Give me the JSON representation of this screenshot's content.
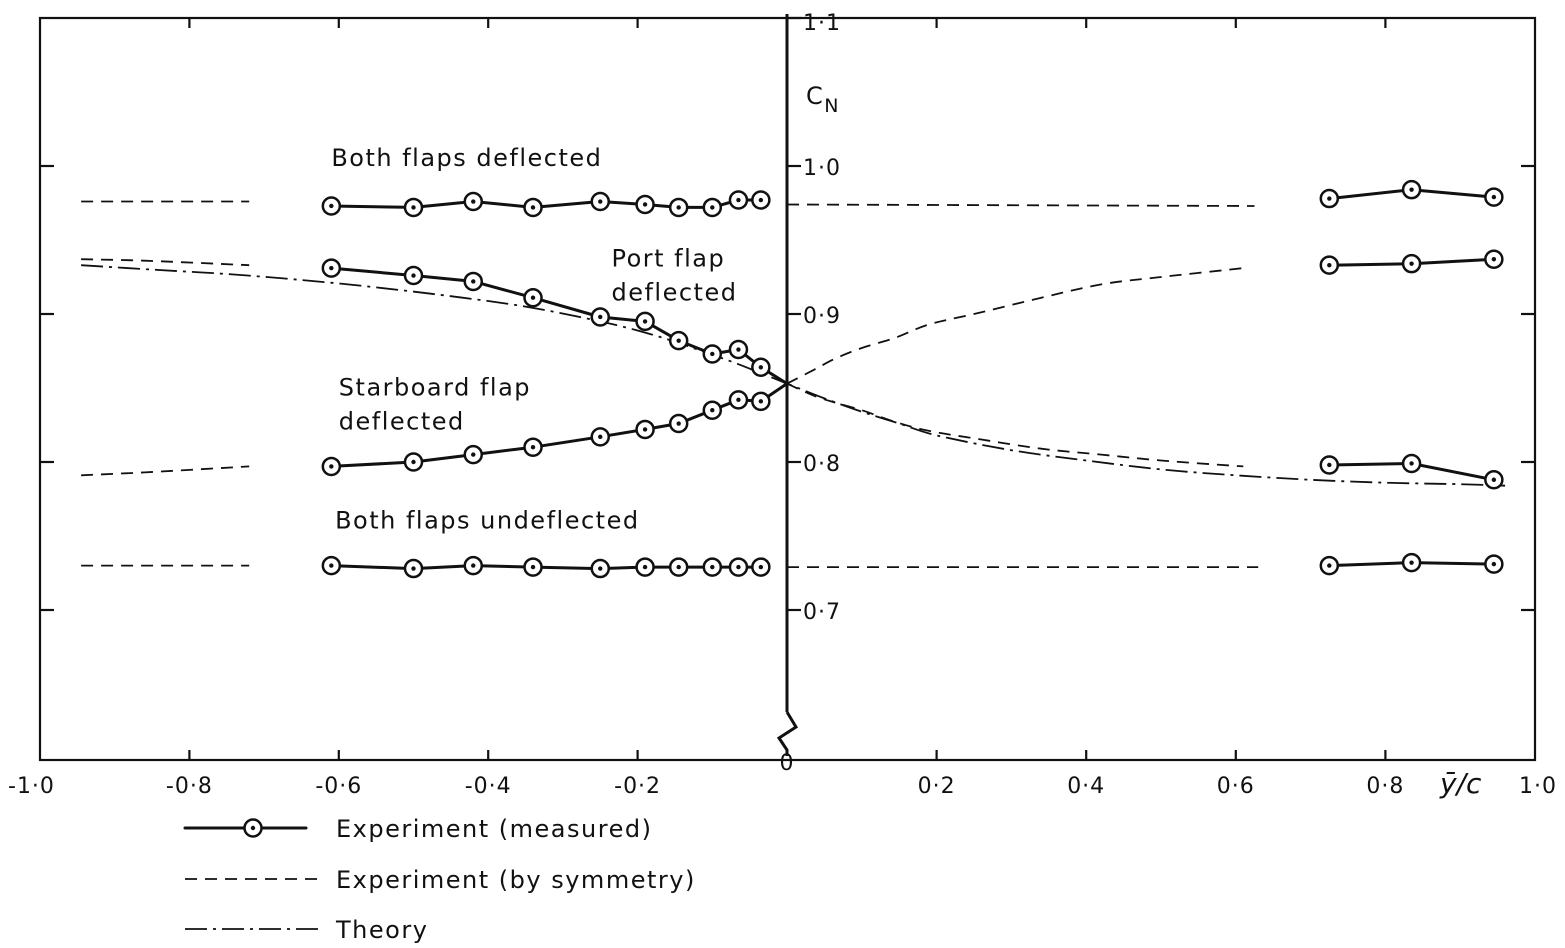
{
  "chart_data": {
    "type": "line",
    "xlabel": "ȳ/c",
    "ylabel": "C_N",
    "ylabel_main": "C",
    "ylabel_sub": "N",
    "xlim": [
      -1.0,
      1.0
    ],
    "ylim": [
      0.6,
      1.1
    ],
    "x_ticks": [
      {
        "value": -1.0,
        "label": "-1·0"
      },
      {
        "value": -0.8,
        "label": "-0·8"
      },
      {
        "value": -0.6,
        "label": "-0·6"
      },
      {
        "value": -0.4,
        "label": "-0·4"
      },
      {
        "value": -0.2,
        "label": "-0·2"
      },
      {
        "value": 0.2,
        "label": "0·2"
      },
      {
        "value": 0.4,
        "label": "0·4"
      },
      {
        "value": 0.6,
        "label": "0·6"
      },
      {
        "value": 0.8,
        "label": "0·8"
      },
      {
        "value": 1.0,
        "label": "1·0"
      }
    ],
    "y_ticks": [
      {
        "value": 1.1,
        "label": "1·1"
      },
      {
        "value": 1.0,
        "label": "1·0"
      },
      {
        "value": 0.9,
        "label": "0·9"
      },
      {
        "value": 0.8,
        "label": "0·8"
      },
      {
        "value": 0.7,
        "label": "0·7"
      },
      {
        "value": 0.6,
        "label": "0"
      }
    ],
    "annotations": [
      {
        "id": "both-deflected",
        "lines": [
          "Both flaps deflected"
        ],
        "x": -0.61,
        "y": 1.0
      },
      {
        "id": "port-deflected",
        "lines": [
          "Port flap",
          "deflected"
        ],
        "x": -0.235,
        "y": 0.932
      },
      {
        "id": "starboard-deflected",
        "lines": [
          "Starboard flap",
          "deflected"
        ],
        "x": -0.6,
        "y": 0.845
      },
      {
        "id": "both-undeflected",
        "lines": [
          "Both flaps undeflected"
        ],
        "x": -0.605,
        "y": 0.755
      }
    ],
    "series": [
      {
        "id": "both-deflected",
        "style": "measured",
        "x": [
          -0.61,
          -0.5,
          -0.42,
          -0.34,
          -0.25,
          -0.19,
          -0.145,
          -0.1,
          -0.065,
          -0.035
        ],
        "y": [
          0.973,
          0.972,
          0.976,
          0.972,
          0.976,
          0.974,
          0.972,
          0.972,
          0.977,
          0.977
        ]
      },
      {
        "id": "both-deflected-right",
        "style": "measured",
        "x": [
          0.725,
          0.835,
          0.945
        ],
        "y": [
          0.978,
          0.984,
          0.979
        ]
      },
      {
        "id": "port-deflected",
        "style": "measured",
        "x": [
          -0.61,
          -0.5,
          -0.42,
          -0.34,
          -0.25,
          -0.19,
          -0.145,
          -0.1,
          -0.065,
          -0.035,
          0.0
        ],
        "y": [
          0.931,
          0.926,
          0.922,
          0.911,
          0.898,
          0.895,
          0.882,
          0.873,
          0.876,
          0.864,
          0.853
        ]
      },
      {
        "id": "port-deflected-right",
        "style": "measured",
        "x": [
          0.725,
          0.835,
          0.945
        ],
        "y": [
          0.933,
          0.934,
          0.937
        ]
      },
      {
        "id": "starboard-deflected",
        "style": "measured",
        "x": [
          -0.61,
          -0.5,
          -0.42,
          -0.34,
          -0.25,
          -0.19,
          -0.145,
          -0.1,
          -0.065,
          -0.035,
          0.0
        ],
        "y": [
          0.797,
          0.8,
          0.805,
          0.81,
          0.817,
          0.822,
          0.826,
          0.835,
          0.842,
          0.841,
          0.853
        ]
      },
      {
        "id": "starboard-deflected-right",
        "style": "measured",
        "x": [
          0.725,
          0.835,
          0.945
        ],
        "y": [
          0.798,
          0.799,
          0.788
        ]
      },
      {
        "id": "both-undeflected",
        "style": "measured",
        "x": [
          -0.61,
          -0.5,
          -0.42,
          -0.34,
          -0.25,
          -0.19,
          -0.145,
          -0.1,
          -0.065,
          -0.035
        ],
        "y": [
          0.73,
          0.728,
          0.73,
          0.729,
          0.728,
          0.729,
          0.729,
          0.729,
          0.729,
          0.729
        ]
      },
      {
        "id": "both-undeflected-right",
        "style": "measured",
        "x": [
          0.725,
          0.835,
          0.945
        ],
        "y": [
          0.73,
          0.732,
          0.731
        ]
      },
      {
        "id": "sym-both-deflected-left",
        "style": "symmetry",
        "x": [
          -0.945,
          -0.72
        ],
        "y": [
          0.976,
          0.976
        ]
      },
      {
        "id": "sym-both-deflected-right",
        "style": "symmetry",
        "x": [
          0.0,
          0.625
        ],
        "y": [
          0.974,
          0.973
        ]
      },
      {
        "id": "sym-port-left",
        "style": "symmetry",
        "x": [
          -0.945,
          -0.86,
          -0.72
        ],
        "y": [
          0.937,
          0.936,
          0.933
        ]
      },
      {
        "id": "sym-port-mirror-right",
        "style": "symmetry",
        "x": [
          0.0,
          0.035,
          0.065,
          0.1,
          0.145,
          0.19,
          0.25,
          0.34,
          0.42,
          0.5,
          0.61
        ],
        "y": [
          0.853,
          0.862,
          0.87,
          0.877,
          0.884,
          0.893,
          0.9,
          0.911,
          0.92,
          0.925,
          0.931
        ]
      },
      {
        "id": "sym-starboard-left",
        "style": "symmetry",
        "x": [
          -0.945,
          -0.86,
          -0.72
        ],
        "y": [
          0.791,
          0.793,
          0.797
        ]
      },
      {
        "id": "sym-starboard-mirror-right",
        "style": "symmetry",
        "x": [
          0.0,
          0.035,
          0.065,
          0.1,
          0.145,
          0.19,
          0.25,
          0.34,
          0.42,
          0.5,
          0.61
        ],
        "y": [
          0.853,
          0.845,
          0.84,
          0.835,
          0.827,
          0.821,
          0.816,
          0.809,
          0.805,
          0.801,
          0.797
        ]
      },
      {
        "id": "sym-undeflected-left",
        "style": "symmetry",
        "x": [
          -0.945,
          -0.72
        ],
        "y": [
          0.73,
          0.73
        ]
      },
      {
        "id": "sym-undeflected-right",
        "style": "symmetry",
        "x": [
          0.0,
          0.63
        ],
        "y": [
          0.729,
          0.729
        ]
      },
      {
        "id": "theory-port",
        "style": "theory",
        "x": [
          -0.945,
          -0.85,
          -0.75,
          -0.65,
          -0.55,
          -0.45,
          -0.35,
          -0.25,
          -0.18,
          -0.12,
          -0.07,
          -0.03,
          0.0,
          0.05,
          0.1,
          0.15,
          0.2,
          0.3,
          0.4,
          0.5,
          0.6,
          0.7,
          0.8,
          0.9,
          0.96
        ],
        "y": [
          0.933,
          0.93,
          0.927,
          0.923,
          0.918,
          0.912,
          0.905,
          0.895,
          0.886,
          0.876,
          0.867,
          0.859,
          0.853,
          0.843,
          0.834,
          0.826,
          0.818,
          0.808,
          0.801,
          0.795,
          0.791,
          0.788,
          0.786,
          0.785,
          0.784
        ]
      }
    ]
  },
  "legend": {
    "measured_label": "Experiment  (measured)",
    "symmetry_label": "Experiment  (by symmetry)",
    "theory_label": "Theory"
  }
}
